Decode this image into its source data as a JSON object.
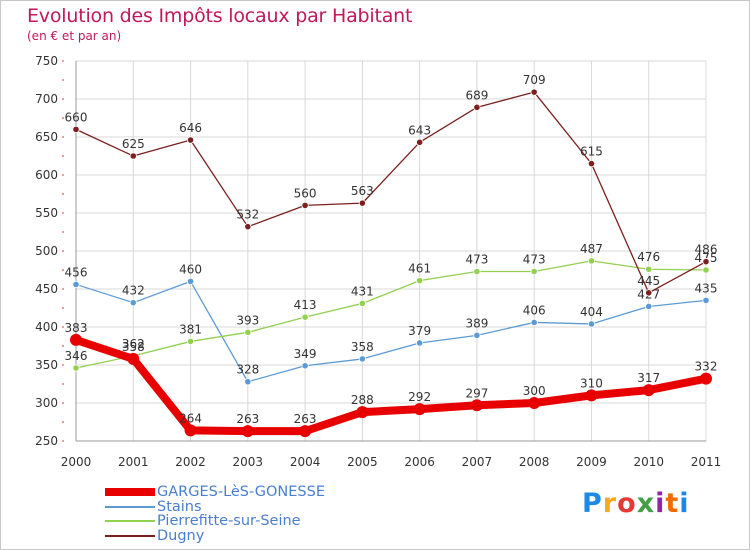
{
  "header": {
    "title": "Evolution des Impôts locaux par Habitant",
    "subtitle": "(en € et par an)"
  },
  "logo": {
    "text": "Proxiti",
    "letter_colors": [
      "#1e88e5",
      "#f9a825",
      "#e53935",
      "#43a047",
      "#8e24aa",
      "#ef6c00",
      "#1e88e5"
    ]
  },
  "colors": {
    "title": "#c2185b",
    "axis": "#999999",
    "grid": "#d8d8d8",
    "tick_text": "#333333",
    "legend_text": "#4a7fd0",
    "tick_marks": "#e53935"
  },
  "chart_data": {
    "type": "line",
    "x": [
      "2000",
      "2001",
      "2002",
      "2003",
      "2004",
      "2005",
      "2006",
      "2007",
      "2008",
      "2009",
      "2010",
      "2011"
    ],
    "ylim": [
      250,
      750
    ],
    "yticks": [
      250,
      300,
      350,
      400,
      450,
      500,
      550,
      600,
      650,
      700,
      750
    ],
    "grid": true,
    "legend_position": "bottom-left",
    "series": [
      {
        "name": "GARGES-LèS-GONESSE",
        "color": "#e80000",
        "values": [
          383,
          358,
          264,
          263,
          263,
          288,
          292,
          297,
          300,
          310,
          317,
          332
        ],
        "labels": [
          "383",
          "358",
          "264",
          "263",
          "263",
          "288",
          "292",
          "297",
          "300",
          "310",
          "317",
          "332"
        ],
        "style": "thick"
      },
      {
        "name": "Stains",
        "color": "#5b9bd5",
        "values": [
          456,
          432,
          460,
          328,
          349,
          358,
          379,
          389,
          406,
          404,
          427,
          435
        ],
        "labels": [
          "456",
          "432",
          "460",
          "328",
          "349",
          "358",
          "379",
          "389",
          "406",
          "404",
          "427",
          "435"
        ],
        "style": "thin"
      },
      {
        "name": "Pierrefitte-sur-Seine",
        "color": "#92d050",
        "values": [
          346,
          362,
          381,
          393,
          413,
          431,
          461,
          473,
          473,
          487,
          476,
          475
        ],
        "labels": [
          "346",
          "362",
          "381",
          "393",
          "413",
          "431",
          "461",
          "473",
          "473",
          "487",
          "476",
          "475"
        ],
        "style": "thin"
      },
      {
        "name": "Dugny",
        "color": "#7b1f1f",
        "values": [
          660,
          625,
          646,
          532,
          560,
          563,
          643,
          689,
          709,
          615,
          445,
          486
        ],
        "labels": [
          "660",
          "625",
          "646",
          "532",
          "560",
          "563",
          "643",
          "689",
          "709",
          "615",
          "445",
          "486"
        ],
        "style": "thin"
      }
    ]
  }
}
